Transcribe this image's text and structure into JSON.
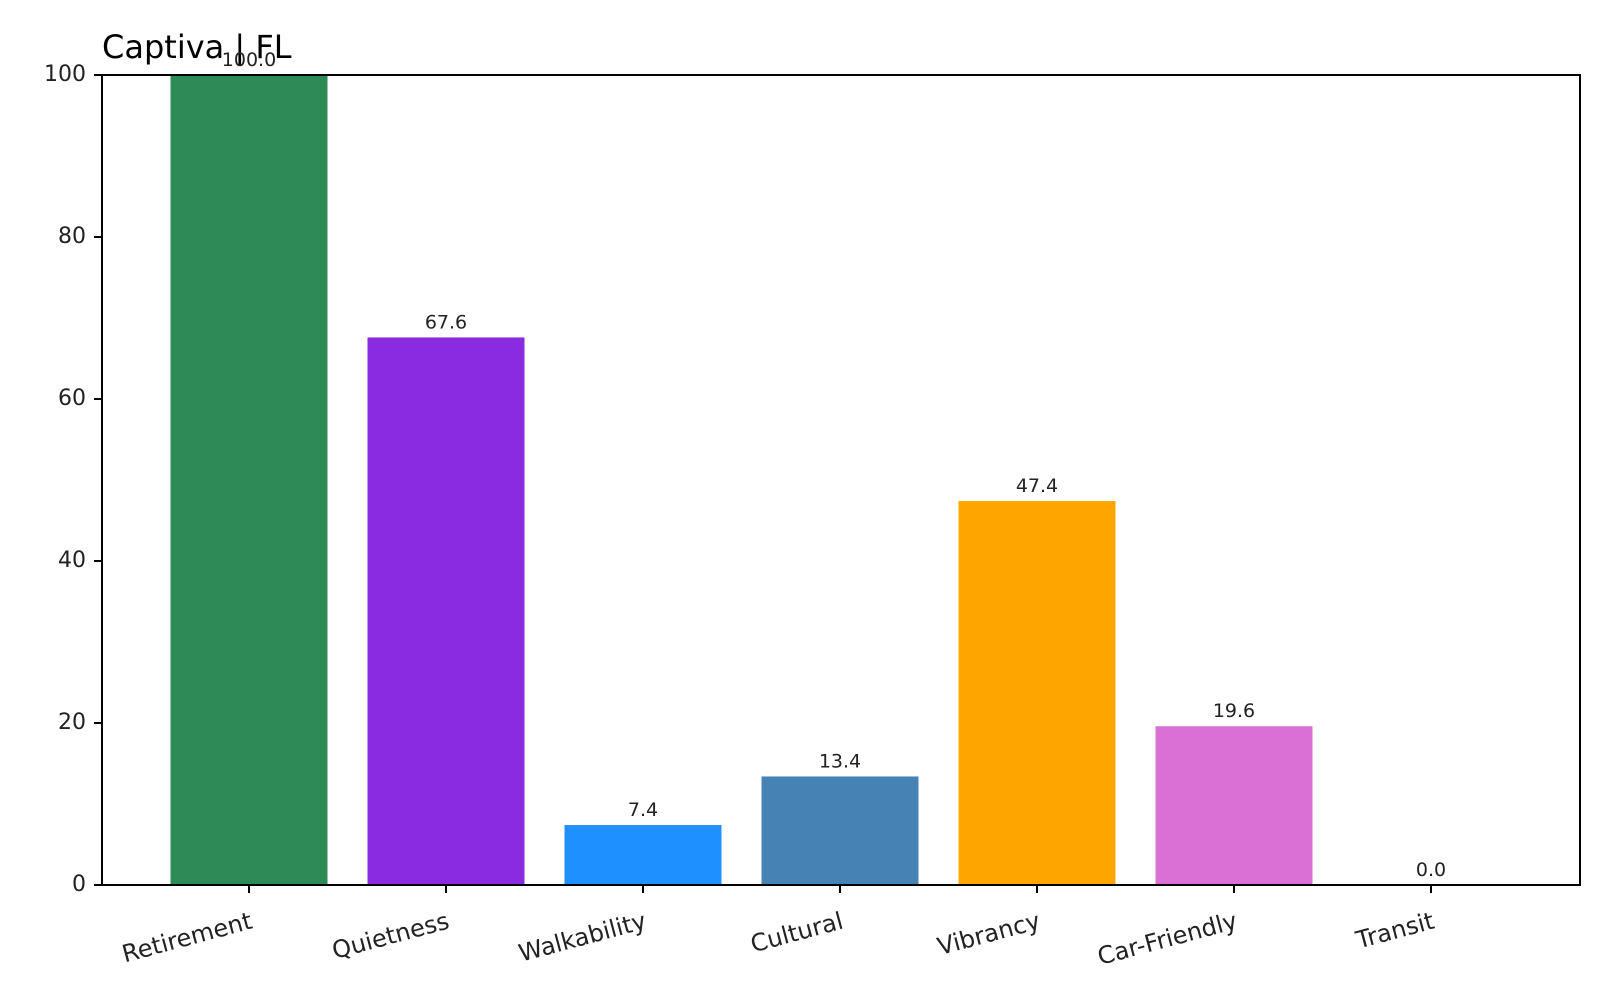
{
  "chart_data": {
    "type": "bar",
    "title": "Captiva | FL",
    "xlabel": "",
    "ylabel": "",
    "ylim": [
      0,
      100
    ],
    "yticks": [
      0,
      20,
      40,
      60,
      80,
      100
    ],
    "grid": false,
    "categories": [
      "Retirement",
      "Quietness",
      "Walkability",
      "Cultural",
      "Vibrancy",
      "Car-Friendly",
      "Transit"
    ],
    "values": [
      100.0,
      67.6,
      7.4,
      13.4,
      47.4,
      19.6,
      0.0
    ],
    "value_labels": [
      "100.0",
      "67.6",
      "7.4",
      "13.4",
      "47.4",
      "19.6",
      "0.0"
    ],
    "colors": [
      "#2e8b57",
      "#8a2be2",
      "#1e90ff",
      "#4682b4",
      "#ffa500",
      "#da70d6",
      "#808080"
    ]
  }
}
